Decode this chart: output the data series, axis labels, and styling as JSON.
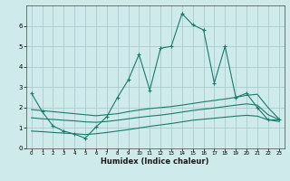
{
  "title": "",
  "xlabel": "Humidex (Indice chaleur)",
  "ylabel": "",
  "background_color": "#ceeaea",
  "grid_color": "#aacccc",
  "line_color": "#1a7a6e",
  "xlim": [
    -0.5,
    23.5
  ],
  "ylim": [
    0,
    7.0
  ],
  "xticks": [
    0,
    1,
    2,
    3,
    4,
    5,
    6,
    7,
    8,
    9,
    10,
    11,
    12,
    13,
    14,
    15,
    16,
    17,
    18,
    19,
    20,
    21,
    22,
    23
  ],
  "yticks": [
    0,
    1,
    2,
    3,
    4,
    5,
    6
  ],
  "series1_x": [
    0,
    1,
    2,
    3,
    4,
    5,
    6,
    7,
    8,
    9,
    10,
    11,
    12,
    13,
    14,
    15,
    16,
    17,
    18,
    19,
    20,
    21,
    22,
    23
  ],
  "series1_y": [
    2.7,
    1.8,
    1.1,
    0.85,
    0.7,
    0.5,
    1.05,
    1.55,
    2.5,
    3.35,
    4.6,
    2.85,
    4.9,
    5.0,
    6.6,
    6.05,
    5.8,
    3.2,
    5.0,
    2.5,
    2.7,
    2.0,
    1.4,
    1.4
  ],
  "series2_x": [
    0,
    1,
    2,
    3,
    4,
    5,
    6,
    7,
    8,
    9,
    10,
    11,
    12,
    13,
    14,
    15,
    16,
    17,
    18,
    19,
    20,
    21,
    22,
    23
  ],
  "series2_y": [
    1.9,
    1.85,
    1.8,
    1.75,
    1.7,
    1.65,
    1.6,
    1.65,
    1.7,
    1.8,
    1.88,
    1.95,
    2.0,
    2.05,
    2.12,
    2.2,
    2.28,
    2.35,
    2.42,
    2.5,
    2.6,
    2.65,
    2.0,
    1.45
  ],
  "series3_x": [
    0,
    1,
    2,
    3,
    4,
    5,
    6,
    7,
    8,
    9,
    10,
    11,
    12,
    13,
    14,
    15,
    16,
    17,
    18,
    19,
    20,
    21,
    22,
    23
  ],
  "series3_y": [
    1.5,
    1.45,
    1.42,
    1.38,
    1.35,
    1.3,
    1.28,
    1.32,
    1.38,
    1.45,
    1.52,
    1.58,
    1.63,
    1.7,
    1.78,
    1.86,
    1.92,
    1.98,
    2.05,
    2.12,
    2.18,
    2.12,
    1.65,
    1.42
  ],
  "series4_x": [
    0,
    1,
    2,
    3,
    4,
    5,
    6,
    7,
    8,
    9,
    10,
    11,
    12,
    13,
    14,
    15,
    16,
    17,
    18,
    19,
    20,
    21,
    22,
    23
  ],
  "series4_y": [
    0.85,
    0.82,
    0.78,
    0.75,
    0.72,
    0.68,
    0.72,
    0.78,
    0.85,
    0.92,
    1.0,
    1.08,
    1.15,
    1.22,
    1.3,
    1.38,
    1.43,
    1.48,
    1.53,
    1.58,
    1.62,
    1.58,
    1.4,
    1.32
  ]
}
